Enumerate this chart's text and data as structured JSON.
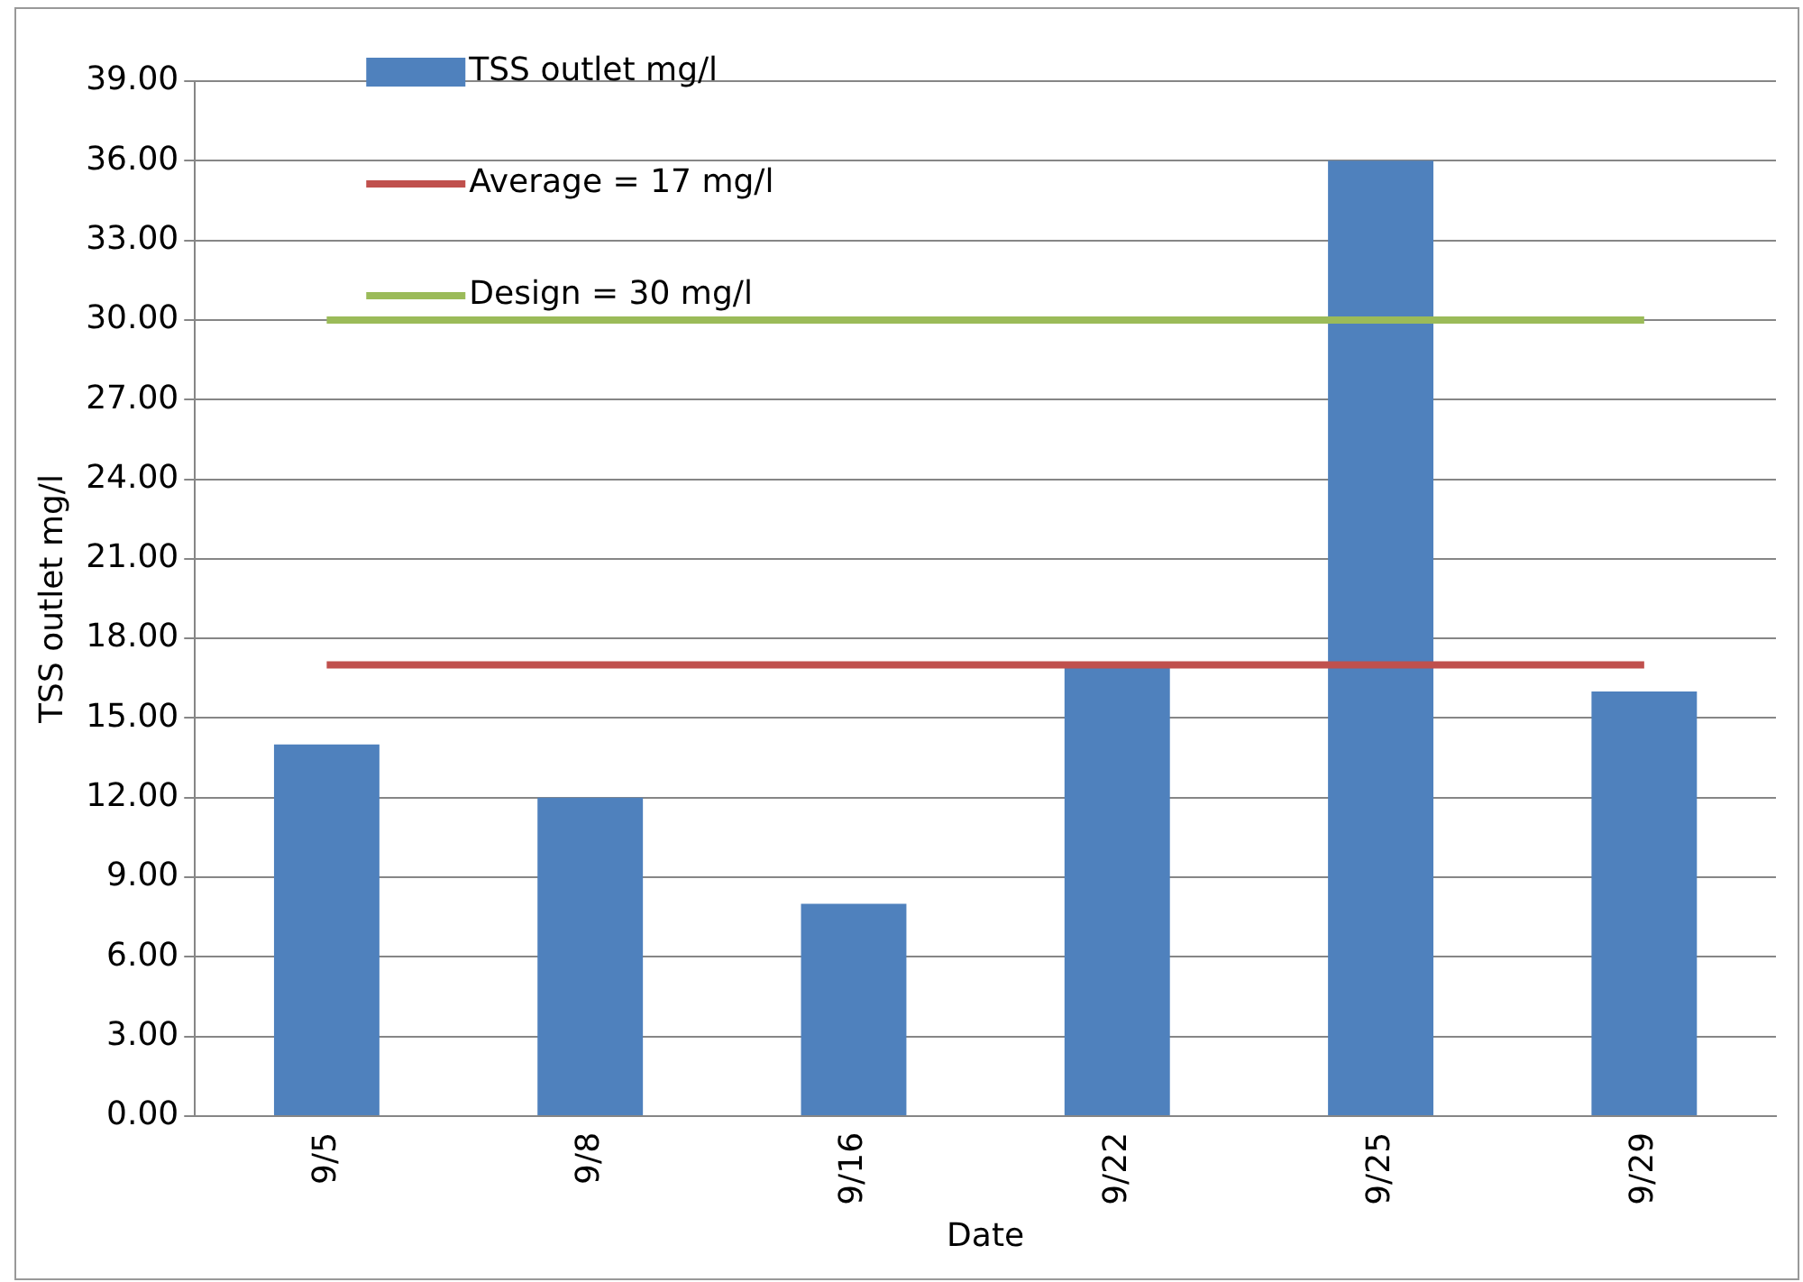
{
  "chart_data": {
    "type": "bar",
    "xlabel": "Date",
    "ylabel": "TSS outlet mg/l",
    "categories": [
      "9/5",
      "9/8",
      "9/16",
      "9/22",
      "9/25",
      "9/29"
    ],
    "series": [
      {
        "name": "TSS outlet mg/l",
        "color": "#4f81bd",
        "values": [
          14,
          12,
          8,
          17,
          36,
          16
        ]
      },
      {
        "name": "Average = 17 mg/l",
        "type": "line",
        "color": "#c0504d",
        "values": [
          17,
          17,
          17,
          17,
          17,
          17
        ]
      },
      {
        "name": "Design = 30 mg/l",
        "type": "line",
        "color": "#9bbb59",
        "values": [
          30,
          30,
          30,
          30,
          30,
          30
        ]
      }
    ],
    "ylim": [
      0,
      39
    ],
    "yticks": [
      {
        "value": 0,
        "label": "0.00"
      },
      {
        "value": 3,
        "label": "3.00"
      },
      {
        "value": 6,
        "label": "6.00"
      },
      {
        "value": 9,
        "label": "9.00"
      },
      {
        "value": 12,
        "label": "12.00"
      },
      {
        "value": 15,
        "label": "15.00"
      },
      {
        "value": 18,
        "label": "18.00"
      },
      {
        "value": 21,
        "label": "21.00"
      },
      {
        "value": 24,
        "label": "24.00"
      },
      {
        "value": 27,
        "label": "27.00"
      },
      {
        "value": 30,
        "label": "30.00"
      },
      {
        "value": 33,
        "label": "33.00"
      },
      {
        "value": 36,
        "label": "36.00"
      },
      {
        "value": 39,
        "label": "39.00"
      }
    ],
    "grid": "y",
    "legend": "top left",
    "marker": "none",
    "line_style": "solid"
  }
}
